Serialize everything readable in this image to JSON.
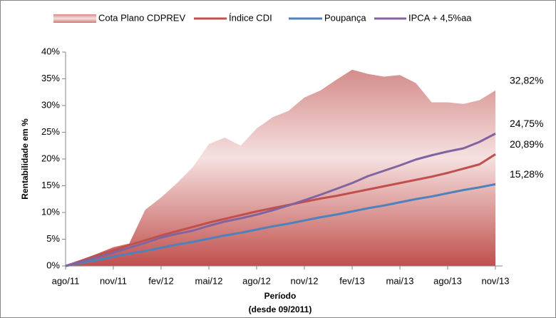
{
  "chart_data": {
    "type": "area-line",
    "y_label": "Rentabilidade em %",
    "x_label": "Período",
    "x_label_note": "(desde 09/2011)",
    "categories": [
      "ago/11",
      null,
      null,
      "nov/11",
      null,
      null,
      "fev/12",
      null,
      null,
      "mai/12",
      null,
      null,
      "ago/12",
      null,
      null,
      "nov/12",
      null,
      null,
      "fev/13",
      null,
      null,
      "mai/13",
      null,
      null,
      "ago/13",
      null,
      null,
      "nov/13"
    ],
    "series": [
      {
        "name": "Cota Plano CDPREV",
        "color": "#c0504d",
        "style": "area",
        "values": [
          0,
          1.2,
          2.3,
          3.5,
          4.2,
          10.5,
          12.8,
          15.5,
          18.5,
          22.8,
          24,
          22.5,
          25.7,
          27.8,
          29,
          31.5,
          32.8,
          34.8,
          36.7,
          35.9,
          35.4,
          35.7,
          34.2,
          30.6,
          30.6,
          30.3,
          31,
          32.82
        ],
        "value_labels": [
          null,
          null,
          null,
          null,
          null,
          null,
          null,
          null,
          null,
          null,
          null,
          null,
          null,
          null,
          null,
          null,
          null,
          null,
          null,
          null,
          null,
          null,
          null,
          null,
          null,
          null,
          null,
          "32,82%"
        ]
      },
      {
        "name": "Índice CDI",
        "color": "#c0504d",
        "style": "line",
        "values": [
          0,
          1.0,
          2.0,
          2.9,
          3.9,
          4.8,
          5.7,
          6.5,
          7.3,
          8.1,
          8.8,
          9.5,
          10.2,
          10.8,
          11.4,
          12.0,
          12.6,
          13.1,
          13.7,
          14.3,
          14.9,
          15.5,
          16.1,
          16.7,
          17.4,
          18.2,
          19.0,
          20.89
        ],
        "value_labels": [
          null,
          null,
          null,
          null,
          null,
          null,
          null,
          null,
          null,
          null,
          null,
          null,
          null,
          null,
          null,
          null,
          null,
          null,
          null,
          null,
          null,
          null,
          null,
          null,
          null,
          null,
          null,
          "20,89%"
        ]
      },
      {
        "name": "Poupança",
        "color": "#4f81bd",
        "style": "line",
        "values": [
          0,
          0.6,
          1.1,
          1.7,
          2.3,
          2.8,
          3.4,
          4.0,
          4.5,
          5.1,
          5.7,
          6.2,
          6.8,
          7.4,
          7.9,
          8.5,
          9.1,
          9.6,
          10.2,
          10.8,
          11.3,
          11.9,
          12.5,
          13.0,
          13.6,
          14.2,
          14.7,
          15.28
        ],
        "value_labels": [
          null,
          null,
          null,
          null,
          null,
          null,
          null,
          null,
          null,
          null,
          null,
          null,
          null,
          null,
          null,
          null,
          null,
          null,
          null,
          null,
          null,
          null,
          null,
          null,
          null,
          null,
          null,
          "15,28%"
        ]
      },
      {
        "name": "IPCA + 4,5%aa",
        "color": "#8064a2",
        "style": "line",
        "values": [
          0,
          0.8,
          1.6,
          2.5,
          3.4,
          4.3,
          5.3,
          6.0,
          6.6,
          7.5,
          8.3,
          8.9,
          9.6,
          10.4,
          11.3,
          12.3,
          13.3,
          14.4,
          15.5,
          16.8,
          17.8,
          18.8,
          19.9,
          20.7,
          21.4,
          22.0,
          23.2,
          24.75
        ],
        "value_labels": [
          null,
          null,
          null,
          null,
          null,
          null,
          null,
          null,
          null,
          null,
          null,
          null,
          null,
          null,
          null,
          null,
          null,
          null,
          null,
          null,
          null,
          null,
          null,
          null,
          null,
          null,
          null,
          "24,75%"
        ]
      }
    ],
    "ylim": [
      0,
      40
    ],
    "yticks": [
      {
        "value": 0,
        "label": "0%"
      },
      {
        "value": 5,
        "label": "5%"
      },
      {
        "value": 10,
        "label": "10%"
      },
      {
        "value": 15,
        "label": "15%"
      },
      {
        "value": 20,
        "label": "20%"
      },
      {
        "value": 25,
        "label": "25%"
      },
      {
        "value": 30,
        "label": "30%"
      },
      {
        "value": 35,
        "label": "35%"
      },
      {
        "value": 40,
        "label": "40%"
      }
    ],
    "grid": false,
    "legend": "top"
  }
}
